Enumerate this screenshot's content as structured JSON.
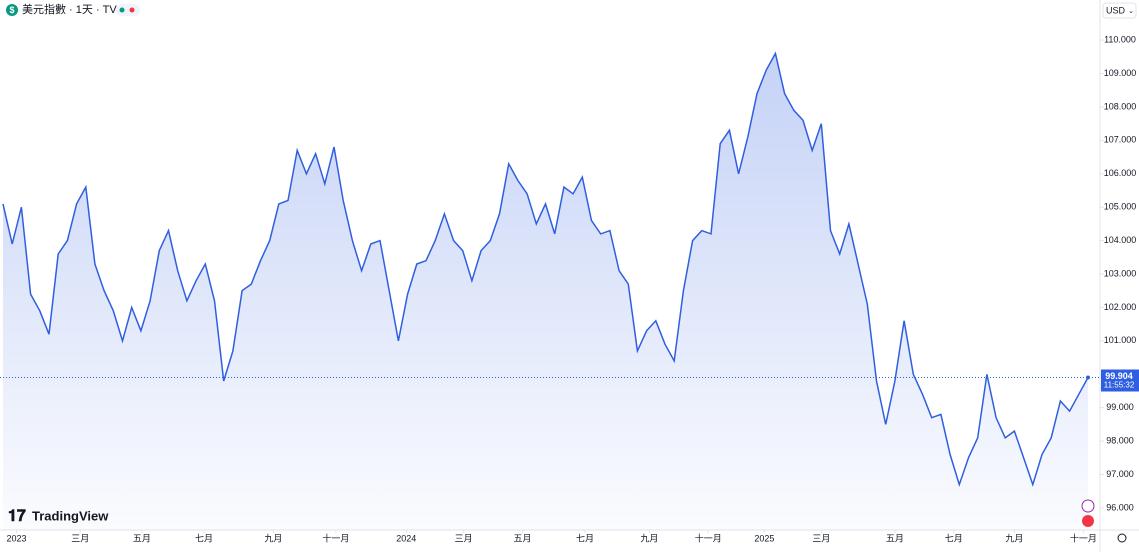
{
  "chart_data": {
    "type": "area",
    "title": "美元指數 · 1天 · TVC",
    "currency": "USD",
    "brand": "TradingView",
    "countdown": "11:55:32",
    "color": "#2f5fe0",
    "grid": false,
    "values": [
      105.1,
      103.9,
      105.0,
      102.4,
      101.9,
      101.2,
      103.6,
      104.0,
      105.1,
      105.6,
      103.3,
      102.5,
      101.9,
      101.0,
      102.0,
      101.3,
      102.2,
      103.7,
      104.3,
      103.1,
      102.2,
      102.8,
      103.3,
      102.2,
      99.8,
      100.7,
      102.5,
      102.7,
      103.4,
      104.0,
      105.1,
      105.2,
      106.7,
      106.0,
      106.6,
      105.7,
      106.8,
      105.2,
      104.0,
      103.1,
      103.9,
      104.0,
      102.5,
      101.0,
      102.4,
      103.3,
      103.4,
      104.0,
      104.8,
      104.0,
      103.7,
      102.8,
      103.7,
      104.0,
      104.8,
      106.3,
      105.8,
      105.4,
      104.5,
      105.1,
      104.2,
      105.6,
      105.4,
      105.9,
      104.6,
      104.2,
      104.3,
      103.1,
      102.7,
      100.7,
      101.3,
      101.6,
      100.9,
      100.4,
      102.5,
      104.0,
      104.3,
      104.2,
      106.9,
      107.3,
      106.0,
      107.1,
      108.4,
      109.1,
      109.6,
      108.4,
      107.9,
      107.6,
      106.7,
      107.5,
      104.3,
      103.6,
      104.5,
      103.3,
      102.1,
      99.8,
      98.5,
      99.8,
      101.6,
      100.0,
      99.4,
      98.7,
      98.8,
      97.6,
      96.7,
      97.5,
      98.1,
      100.0,
      98.7,
      98.1,
      98.3,
      97.5,
      96.7,
      97.6,
      98.1,
      99.2,
      98.9,
      99.4,
      99.904
    ],
    "xlim": [
      0,
      118
    ],
    "xticks": [
      {
        "value": 1.47,
        "label": "2023"
      },
      {
        "value": 8.4,
        "label": "三月"
      },
      {
        "value": 15.1,
        "label": "五月"
      },
      {
        "value": 21.86,
        "label": "七月"
      },
      {
        "value": 29.4,
        "label": "九月"
      },
      {
        "value": 36.2,
        "label": "十一月"
      },
      {
        "value": 43.86,
        "label": "2024"
      },
      {
        "value": 50.1,
        "label": "三月"
      },
      {
        "value": 56.5,
        "label": "五月"
      },
      {
        "value": 63.3,
        "label": "七月"
      },
      {
        "value": 70.3,
        "label": "九月"
      },
      {
        "value": 76.7,
        "label": "十一月"
      },
      {
        "value": 82.8,
        "label": "2025"
      },
      {
        "value": 89.0,
        "label": "三月"
      },
      {
        "value": 97.0,
        "label": "五月"
      },
      {
        "value": 103.4,
        "label": "七月"
      },
      {
        "value": 110.0,
        "label": "九月"
      },
      {
        "value": 117.5,
        "label": "十一月"
      }
    ],
    "ylim": [
      95.64,
      111.2
    ],
    "yticks": [
      {
        "value": 96,
        "label": "96.000"
      },
      {
        "value": 97,
        "label": "97.000"
      },
      {
        "value": 98,
        "label": "98.000"
      },
      {
        "value": 99,
        "label": "99.000"
      },
      {
        "value": 100,
        "label": "100.000"
      },
      {
        "value": 101,
        "label": "101.000"
      },
      {
        "value": 102,
        "label": "102.000"
      },
      {
        "value": 103,
        "label": "103.000"
      },
      {
        "value": 104,
        "label": "104.000"
      },
      {
        "value": 105,
        "label": "105.000"
      },
      {
        "value": 106,
        "label": "106.000"
      },
      {
        "value": 107,
        "label": "107.000"
      },
      {
        "value": 108,
        "label": "108.000"
      },
      {
        "value": 109,
        "label": "109.000"
      },
      {
        "value": 110,
        "label": "110.000"
      }
    ]
  }
}
